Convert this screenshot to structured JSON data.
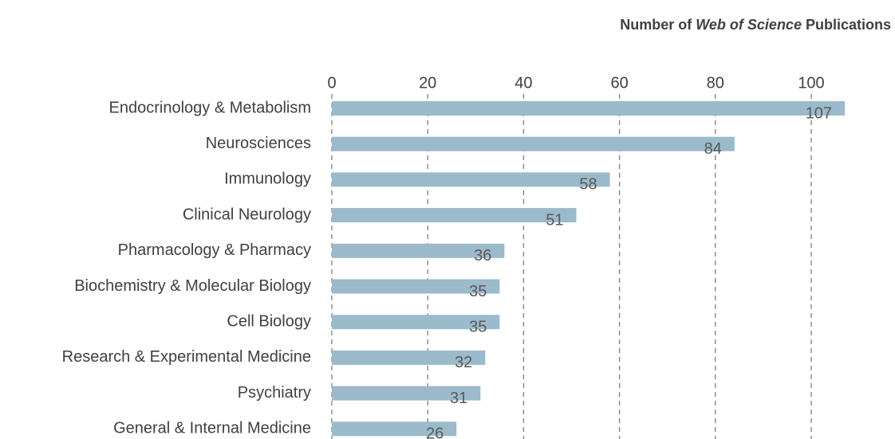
{
  "chart_data": {
    "type": "barh",
    "xlabel": [
      "Number of ",
      "Web of Science",
      " Publications"
    ],
    "categories": [
      "Endocrinology & Metabolism",
      "Neurosciences",
      "Immunology",
      "Clinical Neurology",
      "Pharmacology & Pharmacy",
      "Biochemistry & Molecular Biology",
      "Cell Biology",
      "Research & Experimental Medicine",
      "Psychiatry",
      "General & Internal Medicine"
    ],
    "values": [
      107,
      84,
      58,
      51,
      36,
      35,
      35,
      32,
      31,
      26
    ],
    "color": "#9bbacb",
    "xlim": [
      0,
      110
    ],
    "xticks": [
      0,
      20,
      40,
      60,
      80,
      100
    ],
    "grid": true
  }
}
